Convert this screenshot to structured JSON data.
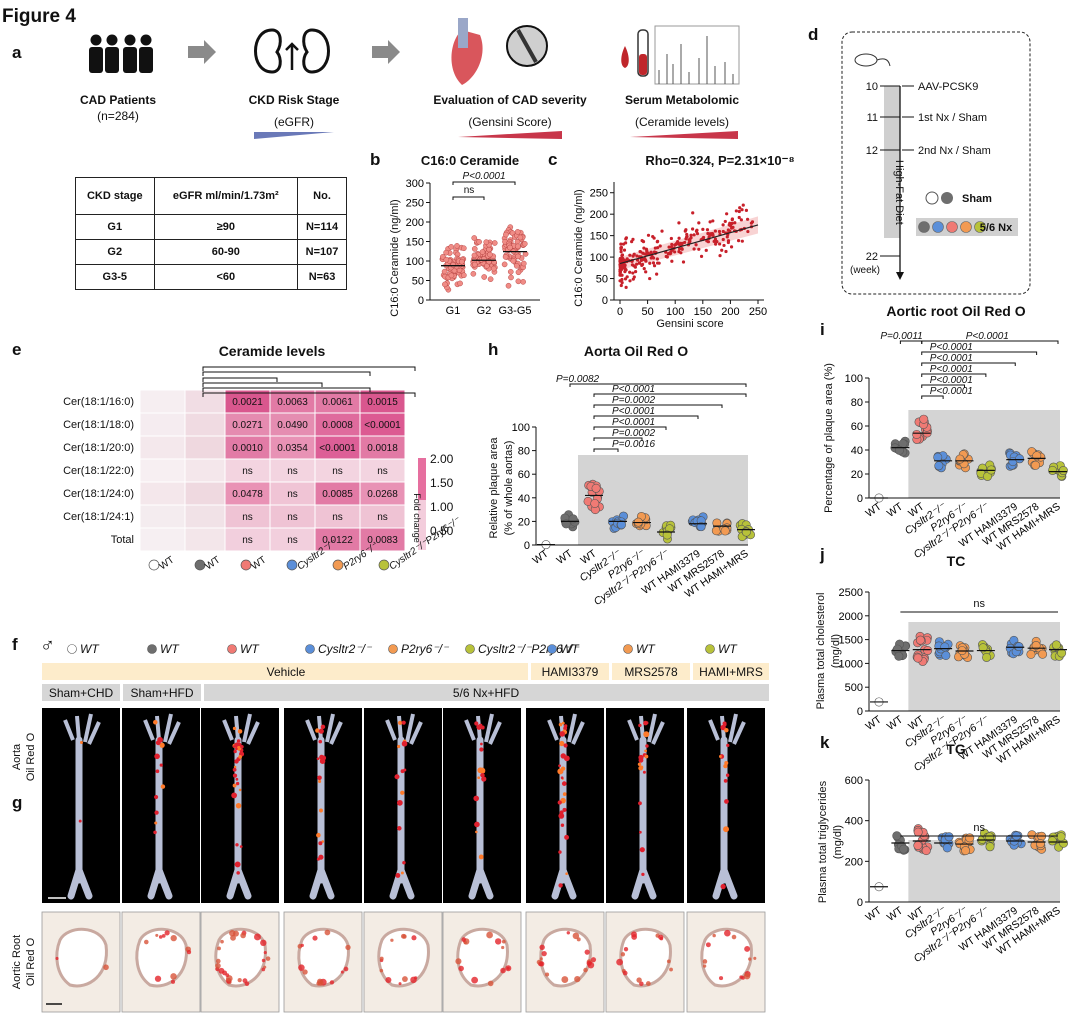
{
  "figure_title": "Figure 4",
  "panels": {
    "a": "a",
    "b": "b",
    "c": "c",
    "d": "d",
    "e": "e",
    "f": "f",
    "g": "g",
    "h": "h",
    "i": "i",
    "j": "j",
    "k": "k"
  },
  "panel_a": {
    "cad_patients": "CAD Patients",
    "n": "(n=284)",
    "ckd_risk": "CKD Risk Stage",
    "egfr": "(eGFR)",
    "cad_severity": "Evaluation of CAD severity",
    "gensini": "(Gensini Score)",
    "metabolomic": "Serum Metabolomic",
    "ceramide": "(Ceramide levels)",
    "table": {
      "headers": [
        "CKD stage",
        "eGFR ml/min/1.73m²",
        "No."
      ],
      "rows": [
        [
          "G1",
          "≥90",
          "N=114"
        ],
        [
          "G2",
          "60-90",
          "N=107"
        ],
        [
          "G3-5",
          "<60",
          "N=63"
        ]
      ]
    }
  },
  "panel_b": {
    "title": "C16:0 Ceramide",
    "ylabel": "C16:0 Ceramide (ng/ml)",
    "p_label": "P<0.0001",
    "ns": "ns"
  },
  "panel_c": {
    "title": "Rho=0.324, P=2.31×10⁻⁸",
    "xlabel": "Gensini score",
    "ylabel": "C16:0 Ceramide (ng/ml)"
  },
  "panel_d": {
    "timeline": [
      {
        "week": "10",
        "event": "AAV-PCSK9"
      },
      {
        "week": "11",
        "event": "1st Nx / Sham"
      },
      {
        "week": "12",
        "event": "2nd Nx / Sham"
      }
    ],
    "end_week": "22",
    "week_unit": "(week)",
    "diet": "High-Fat Diet",
    "sham": "Sham",
    "nx": "5/6 Nx"
  },
  "panel_e": {
    "title": "Ceramide levels",
    "rows": [
      "Cer(18:1/16:0)",
      "Cer(18:1/18:0)",
      "Cer(18:1/20:0)",
      "Cer(18:1/22:0)",
      "Cer(18:1/24:0)",
      "Cer(18:1/24:1)",
      "Total"
    ],
    "cells": [
      [
        "0.0021",
        "0.0063",
        "0.0061",
        "0.0015"
      ],
      [
        "0.0271",
        "0.0490",
        "0.0008",
        "<0.0001"
      ],
      [
        "0.0010",
        "0.0354",
        "<0.0001",
        "0.0018"
      ],
      [
        "ns",
        "ns",
        "ns",
        "ns"
      ],
      [
        "0.0478",
        "ns",
        "0.0085",
        "0.0268"
      ],
      [
        "ns",
        "ns",
        "ns",
        "ns"
      ],
      [
        "ns",
        "ns",
        "0.0122",
        "0.0083"
      ]
    ],
    "legend_title": "Fold change",
    "legend_ticks": [
      "2.00",
      "1.50",
      "1.00",
      "0.50"
    ],
    "cols": [
      "WT",
      "WT",
      "WT",
      "Cysltr2⁻/⁻",
      "P2ry6⁻/⁻",
      "Cysltr2⁻/⁻P2ry6⁻/⁻"
    ]
  },
  "panel_h": {
    "title": "Aorta Oil Red O",
    "ylabel1": "Relative plaque area",
    "ylabel2": "(% of whole aortas)",
    "pvals": [
      "P=0.0082",
      "P<0.0001",
      "P=0.0002",
      "P<0.0001",
      "P<0.0001",
      "P=0.0002",
      "P=0.0016"
    ]
  },
  "panel_i": {
    "title": "Aortic root Oil Red O",
    "ylabel": "Percentage of plaque area (%)",
    "pvals": [
      "P=0.0011",
      "P<0.0001",
      "P<0.0001",
      "P<0.0001",
      "P<0.0001",
      "P<0.0001",
      "P<0.0001"
    ]
  },
  "panel_j": {
    "title": "TC",
    "ylabel1": "Plasma total cholesterol",
    "ylabel2": "(mg/dl)",
    "ns": "ns"
  },
  "panel_k": {
    "title": "TG",
    "ylabel1": "Plasma total triglycerides",
    "ylabel2": "(mg/dl)",
    "ns": "ns"
  },
  "group_labels": [
    "WT",
    "WT",
    "WT",
    "Cysltr2⁻/⁻",
    "P2ry6⁻/⁻",
    "Cysltr2⁻/⁻P2ry6⁻/⁻",
    "WT HAMI3379",
    "WT MRS2578",
    "WT HAMI+MRS"
  ],
  "panel_f": {
    "sex_symbol": "♂",
    "legend": [
      "WT",
      "WT",
      "WT",
      "Cysltr2⁻/⁻",
      "P2ry6⁻/⁻",
      "Cysltr2⁻/⁻P2ry6⁻/⁻",
      "WT",
      "WT",
      "WT"
    ],
    "vehicle": "Vehicle",
    "hami": "HAMI3379",
    "mrs": "MRS2578",
    "hamimrs": "HAMI+MRS",
    "sham_chd": "Sham+CHD",
    "sham_hfd": "Sham+HFD",
    "nx_hfd": "5/6 Nx+HFD",
    "row_label1": "Aorta",
    "row_label2": "Oil Red O"
  },
  "panel_g": {
    "row_label1": "Aortic Root",
    "row_label2": "Oil Red O"
  },
  "colors": {
    "white": "#ffffff",
    "grey": "#6e6e6e",
    "red": "#f07a74",
    "blue": "#5b8fd9",
    "orange": "#f29a52",
    "olive": "#b8c23a",
    "shade": "#d4d4d4",
    "beige": "#fdeccb",
    "heat": "#e979a8"
  },
  "chart_data": [
    {
      "panel": "b",
      "type": "scatter",
      "categories": [
        "G1",
        "G2",
        "G3-G5"
      ],
      "mean": [
        88,
        102,
        124
      ],
      "ylim": [
        0,
        300
      ],
      "yticks": [
        0,
        50,
        100,
        150,
        200,
        250,
        300
      ],
      "ylabel": "C16:0 Ceramide (ng/ml)"
    },
    {
      "panel": "c",
      "type": "scatter",
      "xlim": [
        0,
        250
      ],
      "ylim": [
        0,
        275
      ],
      "xticks": [
        0,
        50,
        100,
        150,
        200,
        250
      ],
      "yticks": [
        0,
        50,
        100,
        150,
        200,
        250
      ],
      "trend": [
        [
          0,
          85
        ],
        [
          250,
          175
        ]
      ],
      "xlabel": "Gensini score",
      "ylabel": "C16:0 Ceramide (ng/ml)"
    },
    {
      "panel": "h",
      "type": "scatter",
      "categories": [
        "WT",
        "WT",
        "WT",
        "Cysltr2⁻/⁻",
        "P2ry6⁻/⁻",
        "Cysltr2⁻/⁻P2ry6⁻/⁻",
        "WT HAMI3379",
        "WT MRS2578",
        "WT HAMI+MRS"
      ],
      "mean": [
        0.3,
        20,
        42,
        20,
        19,
        11,
        18,
        16,
        13
      ],
      "ylim": [
        0,
        100
      ],
      "yticks": [
        0,
        20,
        40,
        60,
        80,
        100
      ]
    },
    {
      "panel": "i",
      "type": "scatter",
      "categories": [
        "WT",
        "WT",
        "WT",
        "Cysltr2⁻/⁻",
        "P2ry6⁻/⁻",
        "Cysltr2⁻/⁻P2ry6⁻/⁻",
        "WT HAMI3379",
        "WT MRS2578",
        "WT HAMI+MRS"
      ],
      "mean": [
        0,
        42,
        54,
        31,
        31,
        23,
        32,
        33,
        22
      ],
      "ylim": [
        0,
        100
      ],
      "yticks": [
        0,
        20,
        40,
        60,
        80,
        100
      ]
    },
    {
      "panel": "j",
      "type": "scatter",
      "categories": [
        "WT",
        "WT",
        "WT",
        "Cysltr2⁻/⁻",
        "P2ry6⁻/⁻",
        "Cysltr2⁻/⁻P2ry6⁻/⁻",
        "WT HAMI3379",
        "WT MRS2578",
        "WT HAMI+MRS"
      ],
      "mean": [
        190,
        1270,
        1290,
        1310,
        1260,
        1270,
        1340,
        1320,
        1290
      ],
      "ylim": [
        0,
        2500
      ],
      "yticks": [
        0,
        500,
        1000,
        1500,
        2000,
        2500
      ]
    },
    {
      "panel": "k",
      "type": "scatter",
      "categories": [
        "WT",
        "WT",
        "WT",
        "Cysltr2⁻/⁻",
        "P2ry6⁻/⁻",
        "Cysltr2⁻/⁻P2ry6⁻/⁻",
        "WT HAMI3379",
        "WT MRS2578",
        "WT HAMI+MRS"
      ],
      "mean": [
        75,
        290,
        300,
        290,
        285,
        305,
        300,
        295,
        295
      ],
      "ylim": [
        0,
        600
      ],
      "yticks": [
        0,
        200,
        400,
        600
      ]
    }
  ]
}
